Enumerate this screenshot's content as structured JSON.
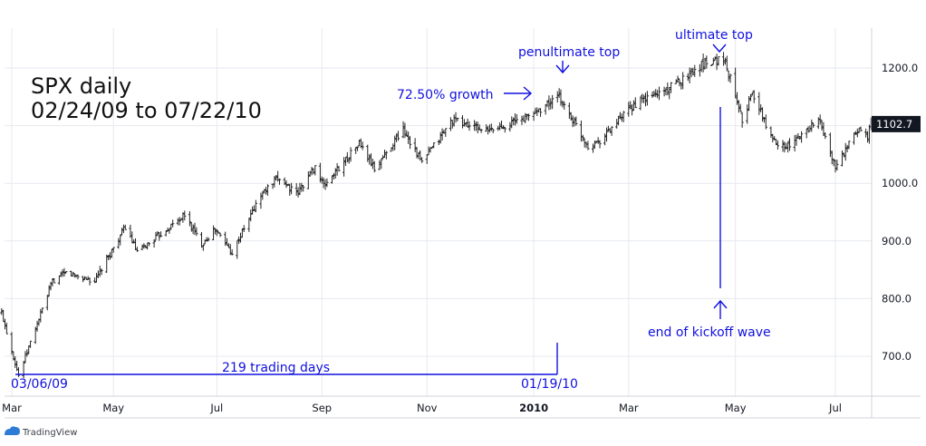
{
  "chart_data": {
    "type": "ohlc",
    "title": "SPX daily",
    "subtitle": "02/24/09 to 07/22/10",
    "x_range": [
      "2009-02-24",
      "2010-07-22"
    ],
    "ylim": [
      640,
      1260
    ],
    "yticks": [
      {
        "value": 700,
        "label": "700.0"
      },
      {
        "value": 800,
        "label": "800.0"
      },
      {
        "value": 900,
        "label": "900.0"
      },
      {
        "value": 1000,
        "label": "1000.0"
      },
      {
        "value": 1200,
        "label": "1200.0"
      }
    ],
    "last_price": {
      "value": 1102.7,
      "label": "1102.7"
    },
    "xticks": [
      {
        "label": "Mar",
        "date": "2009-03-02",
        "bold": false
      },
      {
        "label": "May",
        "date": "2009-05-01",
        "bold": false
      },
      {
        "label": "Jul",
        "date": "2009-07-01",
        "bold": false
      },
      {
        "label": "Sep",
        "date": "2009-09-01",
        "bold": false
      },
      {
        "label": "Nov",
        "date": "2009-11-02",
        "bold": false
      },
      {
        "label": "2010",
        "date": "2010-01-04",
        "bold": true
      },
      {
        "label": "Mar",
        "date": "2010-03-01",
        "bold": false
      },
      {
        "label": "May",
        "date": "2010-05-03",
        "bold": false
      },
      {
        "label": "Jul",
        "date": "2010-07-01",
        "bold": false
      }
    ],
    "grid": true,
    "key_points": [
      {
        "date": "2009-02-24",
        "close": 775
      },
      {
        "date": "2009-03-06",
        "low": 667
      },
      {
        "date": "2009-03-26",
        "close": 830
      },
      {
        "date": "2009-04-03",
        "close": 845
      },
      {
        "date": "2009-04-20",
        "close": 830
      },
      {
        "date": "2009-05-08",
        "close": 925
      },
      {
        "date": "2009-05-15",
        "close": 880
      },
      {
        "date": "2009-06-12",
        "close": 945
      },
      {
        "date": "2009-06-22",
        "close": 895
      },
      {
        "date": "2009-06-30",
        "close": 920
      },
      {
        "date": "2009-07-10",
        "close": 880
      },
      {
        "date": "2009-07-27",
        "close": 980
      },
      {
        "date": "2009-08-07",
        "close": 1010
      },
      {
        "date": "2009-08-17",
        "close": 980
      },
      {
        "date": "2009-08-28",
        "close": 1030
      },
      {
        "date": "2009-09-02",
        "close": 995
      },
      {
        "date": "2009-09-23",
        "close": 1070
      },
      {
        "date": "2009-10-02",
        "close": 1025
      },
      {
        "date": "2009-10-19",
        "close": 1095
      },
      {
        "date": "2009-10-30",
        "close": 1036
      },
      {
        "date": "2009-11-17",
        "close": 1110
      },
      {
        "date": "2009-12-08",
        "close": 1090
      },
      {
        "date": "2009-12-31",
        "close": 1115
      },
      {
        "date": "2010-01-19",
        "close": 1150
      },
      {
        "date": "2010-02-05",
        "close": 1065
      },
      {
        "date": "2010-02-12",
        "close": 1075
      },
      {
        "date": "2010-03-05",
        "close": 1138
      },
      {
        "date": "2010-03-25",
        "close": 1165
      },
      {
        "date": "2010-04-15",
        "close": 1210
      },
      {
        "date": "2010-04-26",
        "close": 1217
      },
      {
        "date": "2010-05-06",
        "close": 1128
      },
      {
        "date": "2010-05-07",
        "close": 1110
      },
      {
        "date": "2010-05-13",
        "close": 1157
      },
      {
        "date": "2010-05-25",
        "close": 1074
      },
      {
        "date": "2010-06-04",
        "close": 1064
      },
      {
        "date": "2010-06-21",
        "close": 1113
      },
      {
        "date": "2010-07-01",
        "close": 1027
      },
      {
        "date": "2010-07-15",
        "close": 1096
      },
      {
        "date": "2010-07-20",
        "close": 1083
      },
      {
        "date": "2010-07-22",
        "close": 1102.7
      }
    ],
    "annotations": {
      "growth": "72.50% growth",
      "penultimate": "penultimate top",
      "ultimate": "ultimate top",
      "kickoff": "end of kickoff wave",
      "trading_days": "219 trading days",
      "start_date": "03/06/09",
      "end_date": "01/19/10"
    },
    "colors": {
      "annotation": "#1010e0",
      "bars": "#222222",
      "grid": "#e6e9ef",
      "axis_text": "#131722",
      "price_label_bg": "#131722"
    }
  },
  "branding": {
    "name": "TradingView"
  }
}
